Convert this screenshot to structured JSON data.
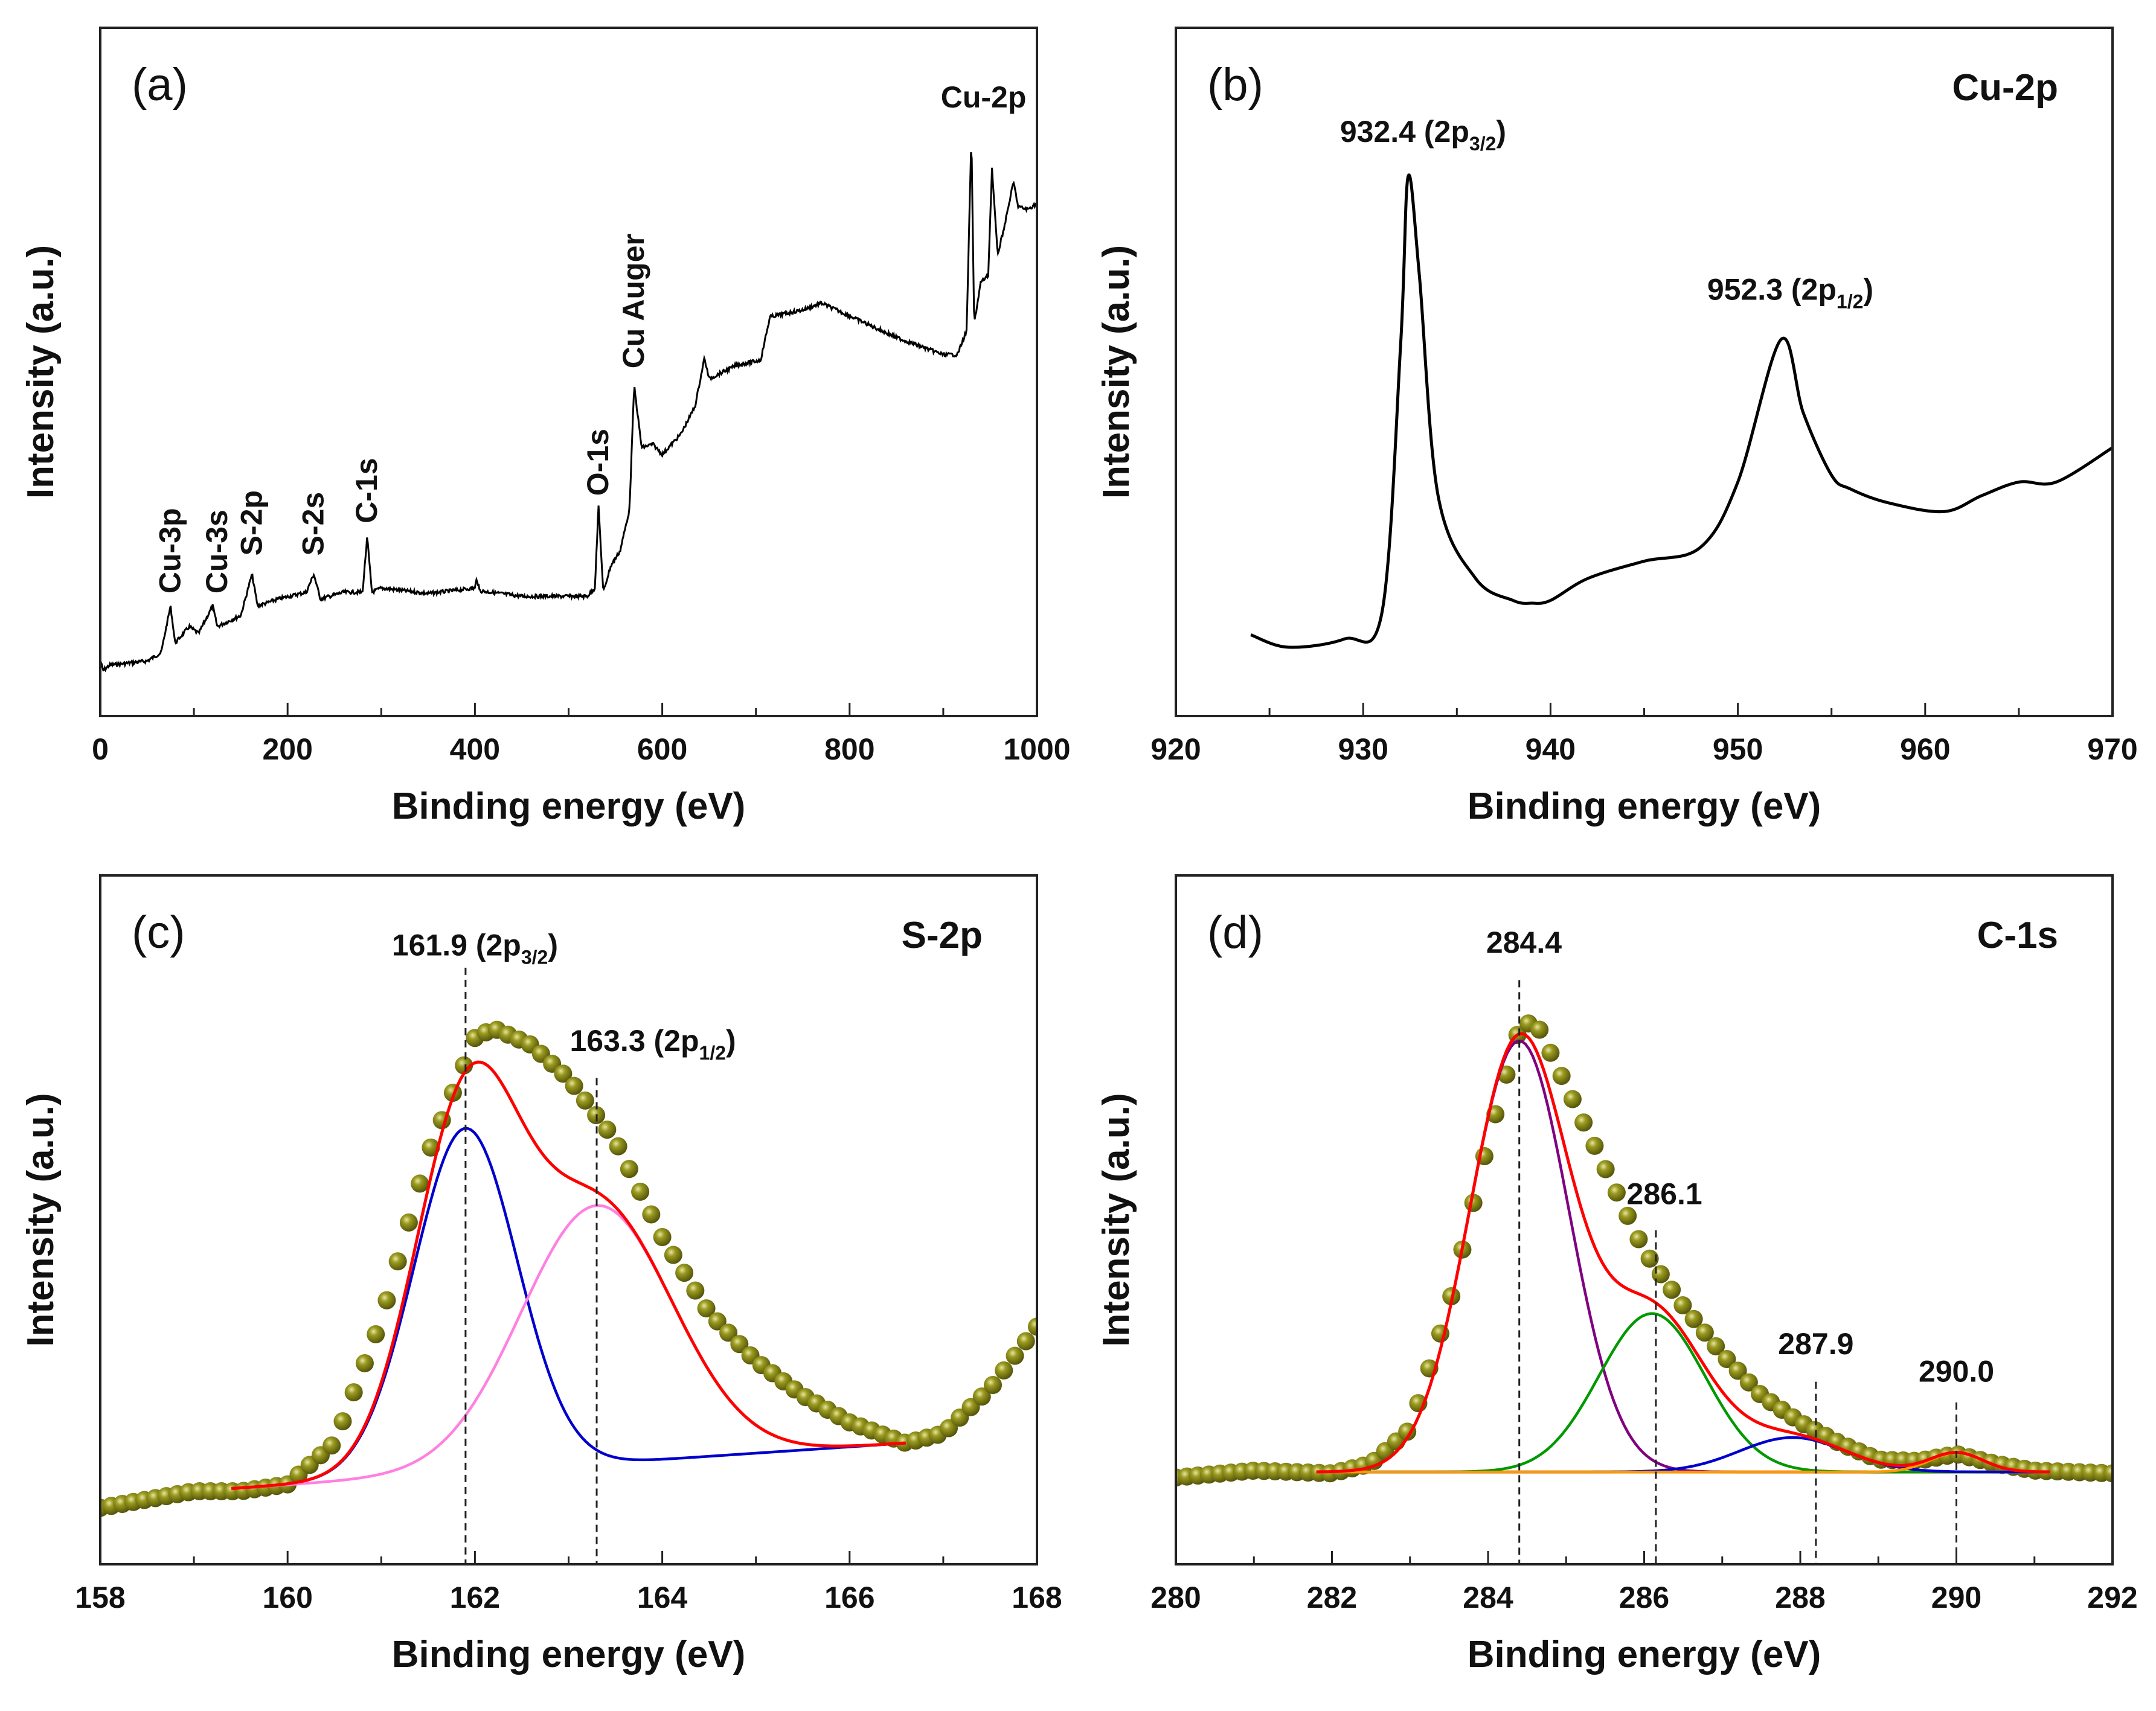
{
  "chart_data": [
    {
      "panel": "(a)",
      "type": "line",
      "xlabel": "Binding energy (eV)",
      "ylabel": "Intensity (a.u.)",
      "xlim": [
        0,
        1000
      ],
      "xticks": [
        0,
        200,
        400,
        600,
        800,
        1000
      ],
      "ylim": [
        0,
        100
      ],
      "grid": false,
      "color": "#000000",
      "series": [
        {
          "x": [
            0,
            3,
            10,
            50,
            65,
            75,
            80,
            95,
            105,
            120,
            125,
            150,
            162,
            168,
            190,
            220,
            228,
            235,
            260,
            280,
            285,
            290,
            300,
            350,
            400,
            402,
            405,
            450,
            520,
            528,
            532,
            537,
            545,
            555,
            565,
            570,
            578,
            590,
            600,
            620,
            635,
            645,
            650,
            680,
            705,
            715,
            750,
            770,
            850,
            900,
            915,
            925,
            930,
            933,
            940,
            948,
            952,
            958,
            965,
            975,
            980,
            990,
            1000
          ],
          "y": [
            8.2,
            6.6,
            7.4,
            8,
            9.2,
            16,
            10.6,
            13,
            12,
            16,
            13,
            14.6,
            20.6,
            16,
            17,
            18,
            20.6,
            17,
            18,
            18,
            26,
            18,
            18.6,
            17.8,
            18.6,
            20,
            18.2,
            17.4,
            17.4,
            18.6,
            30.5,
            18,
            21.8,
            24,
            30,
            48,
            39,
            39.5,
            38,
            41,
            45,
            52,
            49,
            51,
            51.7,
            58,
            59,
            60,
            55,
            52.5,
            52.5,
            56,
            84.4,
            57,
            63,
            64,
            79.6,
            67,
            71,
            77.6,
            74,
            73.6,
            74.5
          ]
        }
      ],
      "annotations": [
        {
          "text": "Cu-3p",
          "x": 75,
          "y": 17.8,
          "rotated": true
        },
        {
          "text": "Cu-3s",
          "x": 125,
          "y": 17.8,
          "rotated": true
        },
        {
          "text": "S-2p",
          "x": 162,
          "y": 23.3,
          "rotated": true
        },
        {
          "text": "S-2s",
          "x": 228,
          "y": 23.3,
          "rotated": true
        },
        {
          "text": "C-1s",
          "x": 285,
          "y": 28,
          "rotated": true
        },
        {
          "text": "O-1s",
          "x": 532,
          "y": 32,
          "rotated": true
        },
        {
          "text": "Cu Auger",
          "x": 570,
          "y": 50.5,
          "rotated": true
        },
        {
          "text": "Cu-2p",
          "x": 943,
          "y": 88.4,
          "rotated": false
        }
      ]
    },
    {
      "panel": "(b)",
      "title": "Cu-2p",
      "type": "line",
      "xlabel": "Binding energy (eV)",
      "ylabel": "Intensity (a.u.)",
      "xlim": [
        920,
        970
      ],
      "xticks": [
        920,
        930,
        940,
        950,
        960,
        970
      ],
      "ylim": [
        0,
        100
      ],
      "grid": false,
      "color": "#000000",
      "series": [
        {
          "x": [
            924,
            926,
            929,
            931,
            932,
            932.4,
            933,
            934,
            936,
            938,
            939,
            940,
            942,
            945,
            948,
            950,
            952.3,
            953.5,
            955,
            956,
            958,
            961,
            963,
            965,
            967,
            970
          ],
          "y": [
            11.8,
            10,
            11.2,
            15,
            54,
            78.4,
            64,
            32,
            20,
            16.8,
            16.4,
            16.8,
            20,
            22.5,
            24.5,
            34,
            54.7,
            44,
            35,
            33,
            31,
            29.7,
            32,
            34,
            34,
            39
          ]
        }
      ],
      "peak_labels": [
        {
          "main": "932.4 (2p",
          "sub": "3/2",
          "close": ")",
          "x": 933.2,
          "y": 83.4
        },
        {
          "main": "952.3 (2p",
          "sub": "1/2",
          "close": ")",
          "x": 952.8,
          "y": 60.5
        }
      ]
    },
    {
      "panel": "(c)",
      "title": "S-2p",
      "type": "scatter+line",
      "xlabel": "Binding energy (eV)",
      "ylabel": "Intensity (a.u.)",
      "xlim": [
        158,
        168
      ],
      "xticks": [
        158,
        160,
        162,
        164,
        166,
        168
      ],
      "ylim": [
        0,
        100
      ],
      "grid": false,
      "measured": {
        "color": "#7a7a10",
        "x": [
          158,
          159,
          159.5,
          160,
          160.5,
          161,
          161.5,
          162,
          162.2,
          162.6,
          163,
          163.5,
          164,
          164.5,
          165,
          165.5,
          166,
          166.6,
          167,
          167.5,
          168
        ],
        "y": [
          8.2,
          10.6,
          10.6,
          11.6,
          17.6,
          35.5,
          59.5,
          76.4,
          77.8,
          75.4,
          70.5,
          61.5,
          47.5,
          36.5,
          29.5,
          24.5,
          20.6,
          17.6,
          19,
          25.5,
          34.5
        ]
      },
      "fit_range": [
        159.4,
        166.6
      ],
      "baseline": [
        11,
        17.6
      ],
      "envelope_color": "#ff0000",
      "components": [
        {
          "center": 161.9,
          "amplitude": 50,
          "fwhm": 1.3,
          "color": "#0000cc"
        },
        {
          "center": 163.3,
          "amplitude": 37.5,
          "fwhm": 1.9,
          "color": "#ff80e0"
        }
      ],
      "peak_labels": [
        {
          "main": "161.9 (2p",
          "sub": "3/2",
          "close": ")",
          "x": 162.0,
          "y": 88.4,
          "line_x": 161.9,
          "line_top": 86.6
        },
        {
          "main": "163.3 (2p",
          "sub": "1/2",
          "close": ")",
          "x": 163.9,
          "y": 74.5,
          "line_x": 163.3,
          "line_top": 70.6
        }
      ]
    },
    {
      "panel": "(d)",
      "title": "C-1s",
      "type": "scatter+line",
      "xlabel": "Binding energy (eV)",
      "ylabel": "Intensity (a.u.)",
      "xlim": [
        280,
        292
      ],
      "xticks": [
        280,
        282,
        284,
        286,
        288,
        290,
        292
      ],
      "ylim": [
        0,
        100
      ],
      "grid": false,
      "measured": {
        "color": "#7a7a10",
        "x": [
          280,
          281,
          282,
          282.5,
          283,
          283.5,
          284,
          284.4,
          284.6,
          285,
          285.5,
          286,
          286.5,
          287,
          287.5,
          288,
          288.5,
          289,
          289.5,
          290,
          290.5,
          291,
          292
        ],
        "y": [
          12.6,
          13.6,
          13.2,
          14.6,
          19.6,
          37.5,
          61.5,
          77.8,
          79,
          69.5,
          57.5,
          45.5,
          37.5,
          30.5,
          24.5,
          20.6,
          17.6,
          15.2,
          15,
          16,
          14.6,
          13.6,
          13.2
        ]
      },
      "fit_range": [
        281.8,
        291.2
      ],
      "baseline": [
        13.4,
        13.4
      ],
      "baseline_color": "#ff9900",
      "envelope_color": "#ff0000",
      "components": [
        {
          "center": 284.4,
          "amplitude": 62.6,
          "fwhm": 1.5,
          "color": "#800080"
        },
        {
          "center": 286.1,
          "amplitude": 23,
          "fwhm": 1.6,
          "color": "#009900"
        },
        {
          "center": 287.9,
          "amplitude": 5,
          "fwhm": 1.6,
          "color": "#0000cc"
        },
        {
          "center": 290.0,
          "amplitude": 2.8,
          "fwhm": 0.8,
          "color": "#ff9900"
        }
      ],
      "peak_labels": [
        {
          "main": "284.4",
          "x": 284.46,
          "y": 88.8,
          "line_x": 284.4,
          "line_top": 84.8
        },
        {
          "main": "286.1",
          "x": 286.26,
          "y": 52.3,
          "line_x": 286.15,
          "line_top": 48.5
        },
        {
          "main": "287.9",
          "x": 288.2,
          "y": 30.5,
          "line_x": 288.2,
          "line_top": 26.5
        },
        {
          "main": "290.0",
          "x": 290.0,
          "y": 26.5,
          "line_x": 290.0,
          "line_top": 23.5
        }
      ]
    }
  ]
}
